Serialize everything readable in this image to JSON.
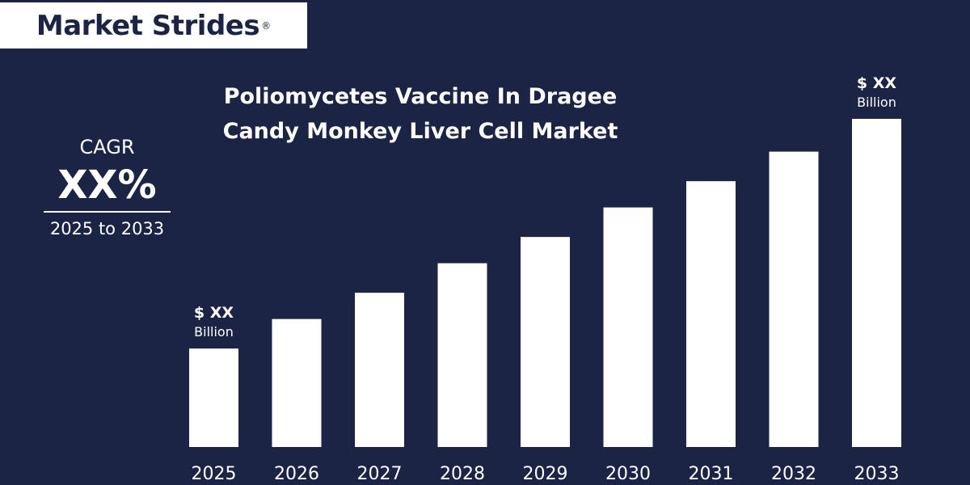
{
  "brand": {
    "name": "Market Strides",
    "mark": "®"
  },
  "cagr": {
    "label": "CAGR",
    "value": "XX%",
    "range": "2025 to 2033"
  },
  "chart_data": {
    "type": "bar",
    "title": [
      "Poliomycetes Vaccine In Dragee",
      "Candy Monkey Liver Cell Market"
    ],
    "categories": [
      "2025",
      "2026",
      "2027",
      "2028",
      "2029",
      "2030",
      "2031",
      "2032",
      "2033"
    ],
    "values": [
      30,
      39,
      47,
      56,
      64,
      73,
      81,
      90,
      100
    ],
    "ylim": [
      0,
      100
    ],
    "grid": false,
    "annotations": [
      {
        "category": "2025",
        "line1": "$ XX",
        "line2": "Billion"
      },
      {
        "category": "2033",
        "line1": "$ XX",
        "line2": "Billion"
      }
    ],
    "colors": {
      "bar": "#ffffff",
      "background": "#1b2444",
      "text": "#ffffff"
    }
  }
}
